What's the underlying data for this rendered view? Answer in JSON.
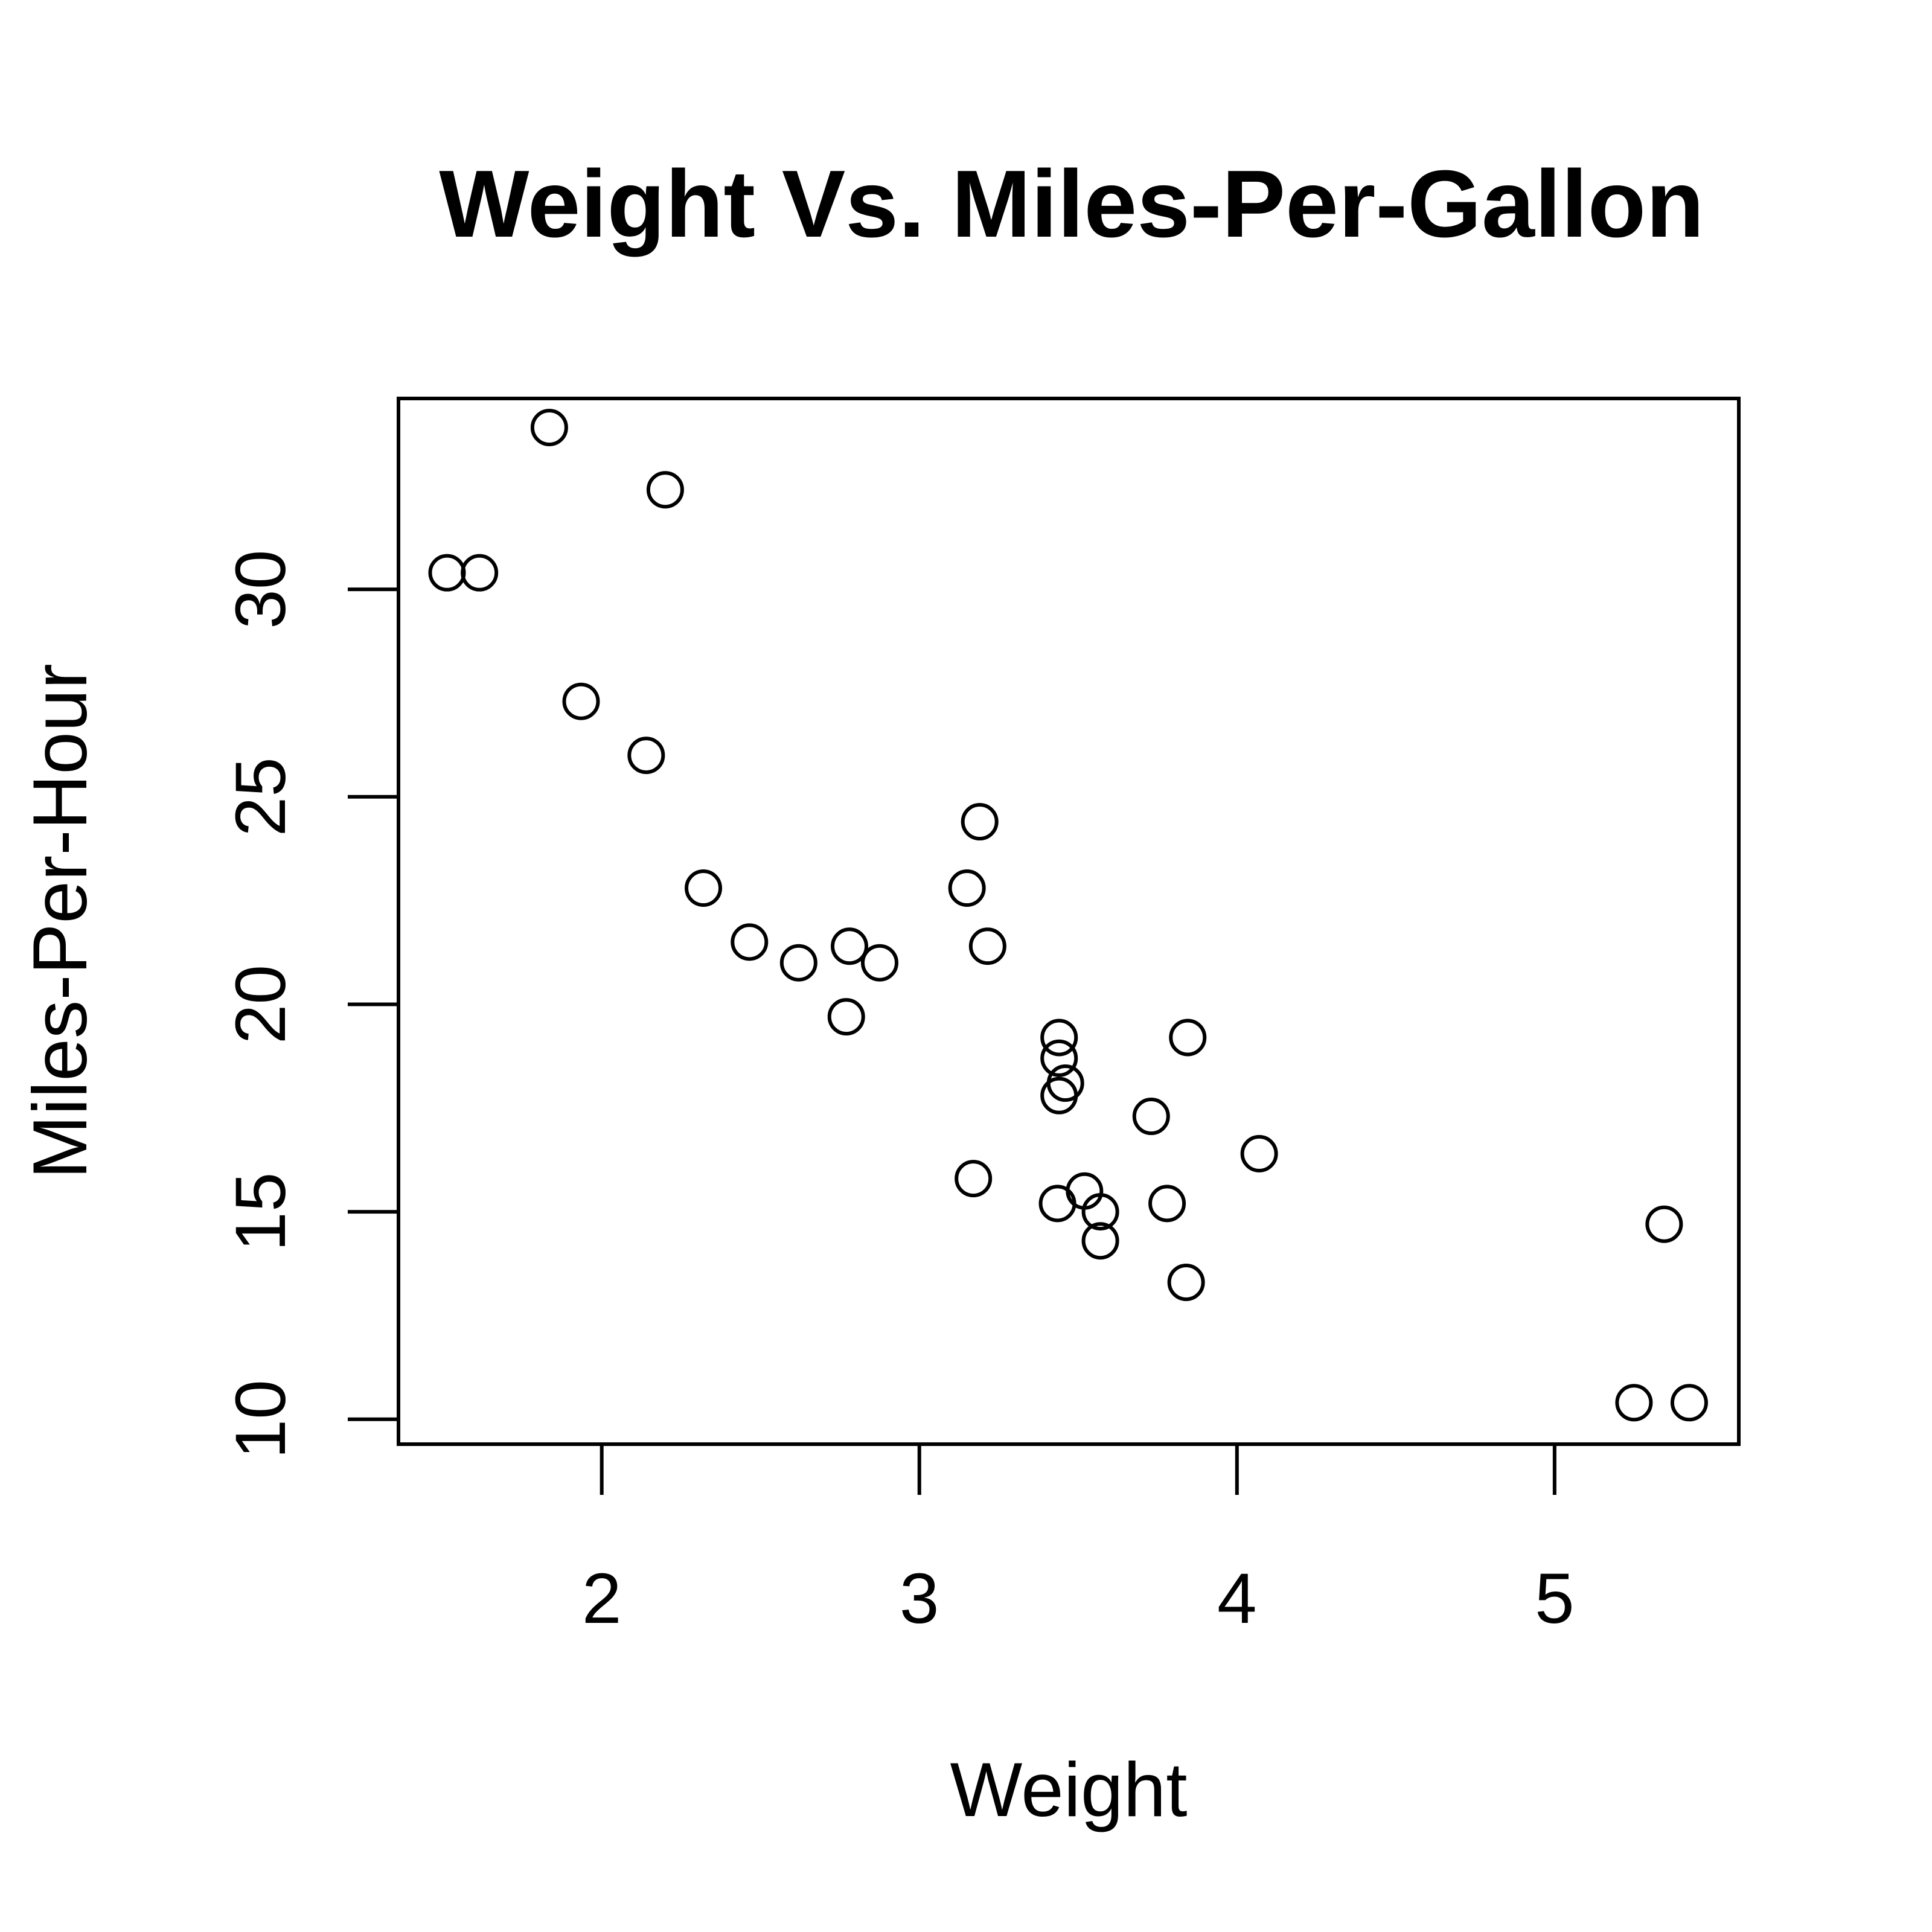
{
  "chart_data": {
    "type": "scatter",
    "title": "Weight Vs. Miles-Per-Gallon",
    "xlabel": "Weight",
    "ylabel": "Miles-Per-Hour",
    "xlim": [
      1.36,
      5.58
    ],
    "ylim": [
      9.4,
      34.6
    ],
    "xticks": [
      2,
      3,
      4,
      5
    ],
    "yticks": [
      10,
      15,
      20,
      25,
      30
    ],
    "xtick_labels": [
      "2",
      "3",
      "4",
      "5"
    ],
    "ytick_labels": [
      "10",
      "15",
      "20",
      "25",
      "30"
    ],
    "grid": false,
    "legend": "none",
    "marker": "open-circle",
    "x": [
      2.62,
      2.875,
      2.32,
      3.215,
      3.44,
      3.46,
      3.57,
      3.19,
      3.15,
      3.44,
      3.44,
      4.07,
      3.73,
      3.78,
      5.25,
      5.424,
      5.345,
      2.2,
      1.615,
      1.835,
      2.465,
      3.52,
      3.435,
      3.84,
      3.845,
      1.935,
      2.14,
      1.513,
      3.17,
      2.77,
      3.57,
      2.78
    ],
    "y": [
      21.0,
      21.0,
      22.8,
      21.4,
      18.7,
      18.1,
      14.3,
      24.4,
      22.8,
      19.2,
      17.8,
      16.4,
      17.3,
      15.2,
      10.4,
      10.4,
      14.7,
      32.4,
      30.4,
      33.9,
      21.5,
      15.5,
      15.2,
      13.3,
      19.2,
      27.3,
      26.0,
      30.4,
      15.8,
      19.7,
      15.0,
      21.4
    ]
  }
}
